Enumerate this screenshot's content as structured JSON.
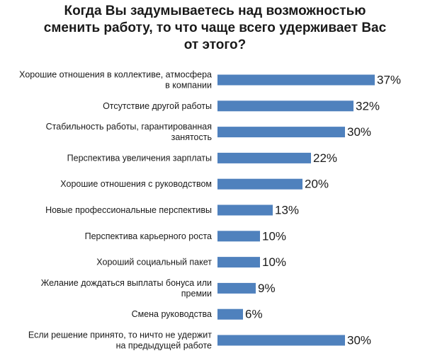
{
  "chart_data": {
    "type": "bar",
    "orientation": "horizontal",
    "title": "Когда Вы задумываетесь над возможностью сменить работу, то что чаще всего  удерживает Вас от этого?",
    "title_lines": [
      "Когда Вы задумываетесь над возможностью",
      "сменить работу, то что чаще всего  удерживает Вас",
      "от этого?"
    ],
    "categories": [
      "Хорошие отношения в коллективе, атмосфера в компании",
      "Отсутствие другой работы",
      "Стабильность работы, гарантированная занятость",
      "Перспектива увеличения зарплаты",
      "Хорошие отношения с руководством",
      "Новые профессиональные перспективы",
      "Перспектива карьерного роста",
      "Хороший социальный пакет",
      "Желание дождаться выплаты бонуса или премии",
      "Смена руководства",
      "Если решение принято, то ничто не удержит на предыдущей работе"
    ],
    "category_lines": [
      [
        "Хорошие отношения в коллективе, атмосфера",
        "в компании"
      ],
      [
        "Отсутствие другой работы"
      ],
      [
        "Стабильность работы, гарантированная",
        "занятость"
      ],
      [
        "Перспектива увеличения зарплаты"
      ],
      [
        "Хорошие отношения с руководством"
      ],
      [
        "Новые профессиональные перспективы"
      ],
      [
        "Перспектива карьерного роста"
      ],
      [
        "Хороший социальный пакет"
      ],
      [
        "Желание дождаться выплаты бонуса или",
        "премии"
      ],
      [
        "Смена руководства"
      ],
      [
        "Если решение принято, то ничто не удержит",
        "на предыдущей работе"
      ]
    ],
    "values": [
      37,
      32,
      30,
      22,
      20,
      13,
      10,
      10,
      9,
      6,
      30
    ],
    "value_labels": [
      "37%",
      "32%",
      "30%",
      "22%",
      "20%",
      "13%",
      "10%",
      "10%",
      "9%",
      "6%",
      "30%"
    ],
    "unit": "%",
    "xlim": [
      0,
      37
    ],
    "grid": false,
    "legend": "none",
    "bar_color": "#4f81bd"
  }
}
